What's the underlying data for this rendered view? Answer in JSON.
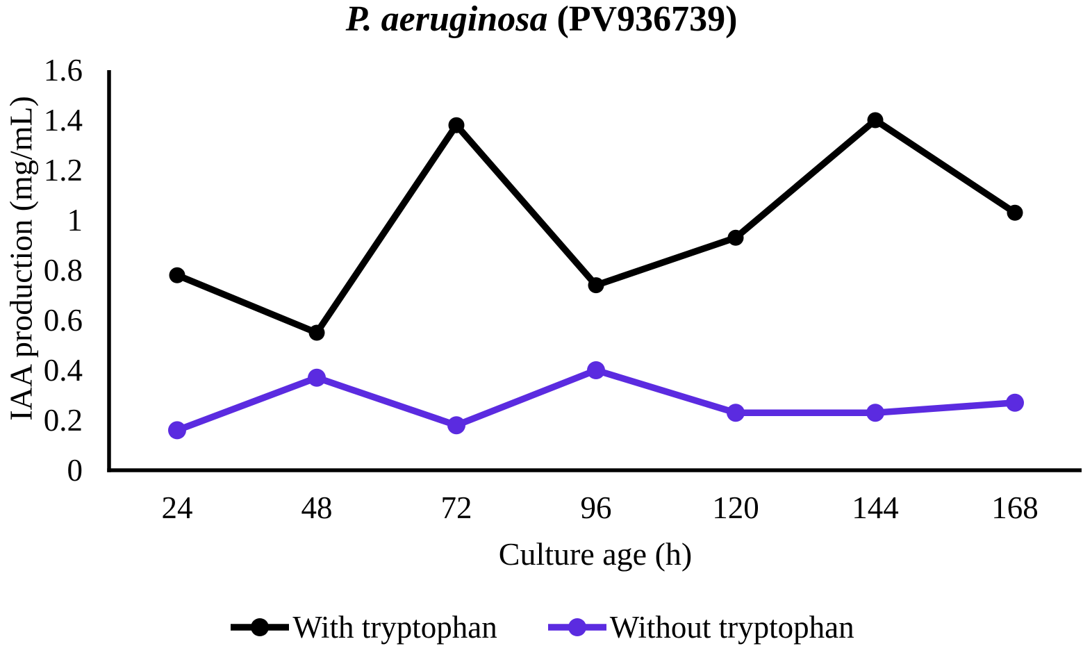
{
  "title": {
    "italic_part": "P. aeruginosa",
    "regular_part": " (PV936739)"
  },
  "chart_data": {
    "type": "line",
    "title": "P. aeruginosa (PV936739)",
    "xlabel": "Culture age (h)",
    "ylabel": "IAA production (mg/mL)",
    "categories": [
      "24",
      "48",
      "72",
      "96",
      "120",
      "144",
      "168"
    ],
    "x_values": [
      24,
      48,
      72,
      96,
      120,
      144,
      168
    ],
    "yticks": [
      "0",
      "0.2",
      "0.4",
      "0.6",
      "0.8",
      "1",
      "1.2",
      "1.4",
      "1.6"
    ],
    "ytick_values": [
      0,
      0.2,
      0.4,
      0.6,
      0.8,
      1,
      1.2,
      1.4,
      1.6
    ],
    "ylim": [
      0,
      1.6
    ],
    "grid": false,
    "marker": "circle",
    "legend_position": "bottom",
    "axis_color": "#000000",
    "series": [
      {
        "name": "With tryptophan",
        "color": "#000000",
        "values": [
          0.78,
          0.55,
          1.38,
          0.74,
          0.93,
          1.4,
          1.03
        ]
      },
      {
        "name": "Without tryptophan",
        "color": "#5B2BE0",
        "values": [
          0.16,
          0.37,
          0.18,
          0.4,
          0.23,
          0.23,
          0.27
        ]
      }
    ]
  }
}
